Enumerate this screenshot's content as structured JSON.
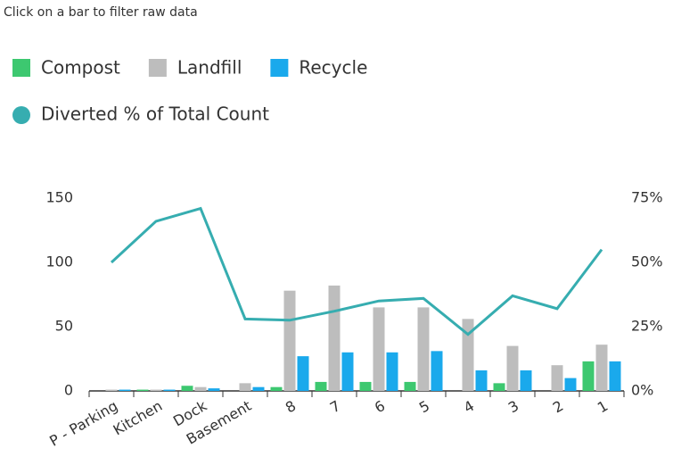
{
  "instruction": "Click on a bar to filter raw data",
  "chart_data": {
    "type": "bar",
    "categories": [
      "P - Parking",
      "Kitchen",
      "Dock",
      "Basement",
      "8",
      "7",
      "6",
      "5",
      "4",
      "3",
      "2",
      "1"
    ],
    "series": [
      {
        "name": "Compost",
        "color": "#3dc870",
        "values": [
          0,
          1,
          4,
          0,
          3,
          7,
          7,
          7,
          0,
          6,
          0,
          23
        ]
      },
      {
        "name": "Landfill",
        "color": "#bdbdbd",
        "values": [
          1,
          1,
          3,
          6,
          78,
          82,
          65,
          65,
          56,
          35,
          20,
          36
        ]
      },
      {
        "name": "Recycle",
        "color": "#1aa9ec",
        "values": [
          1,
          1,
          2,
          3,
          27,
          30,
          30,
          31,
          16,
          16,
          10,
          23
        ]
      },
      {
        "name": "Diverted % of Total Count",
        "type": "line",
        "axis": "y2",
        "color": "#36adb0",
        "values": [
          50,
          66,
          71,
          28,
          27.5,
          31,
          35,
          36,
          22,
          37,
          32,
          55
        ]
      }
    ],
    "ylim": [
      0,
      150
    ],
    "yticks": [
      0,
      50,
      100,
      150
    ],
    "y2lim": [
      0,
      75
    ],
    "y2ticks": [
      {
        "value": 0,
        "label": "0%"
      },
      {
        "value": 25,
        "label": "25%"
      },
      {
        "value": 50,
        "label": "50%"
      },
      {
        "value": 75,
        "label": "75%"
      }
    ],
    "grid": false
  }
}
